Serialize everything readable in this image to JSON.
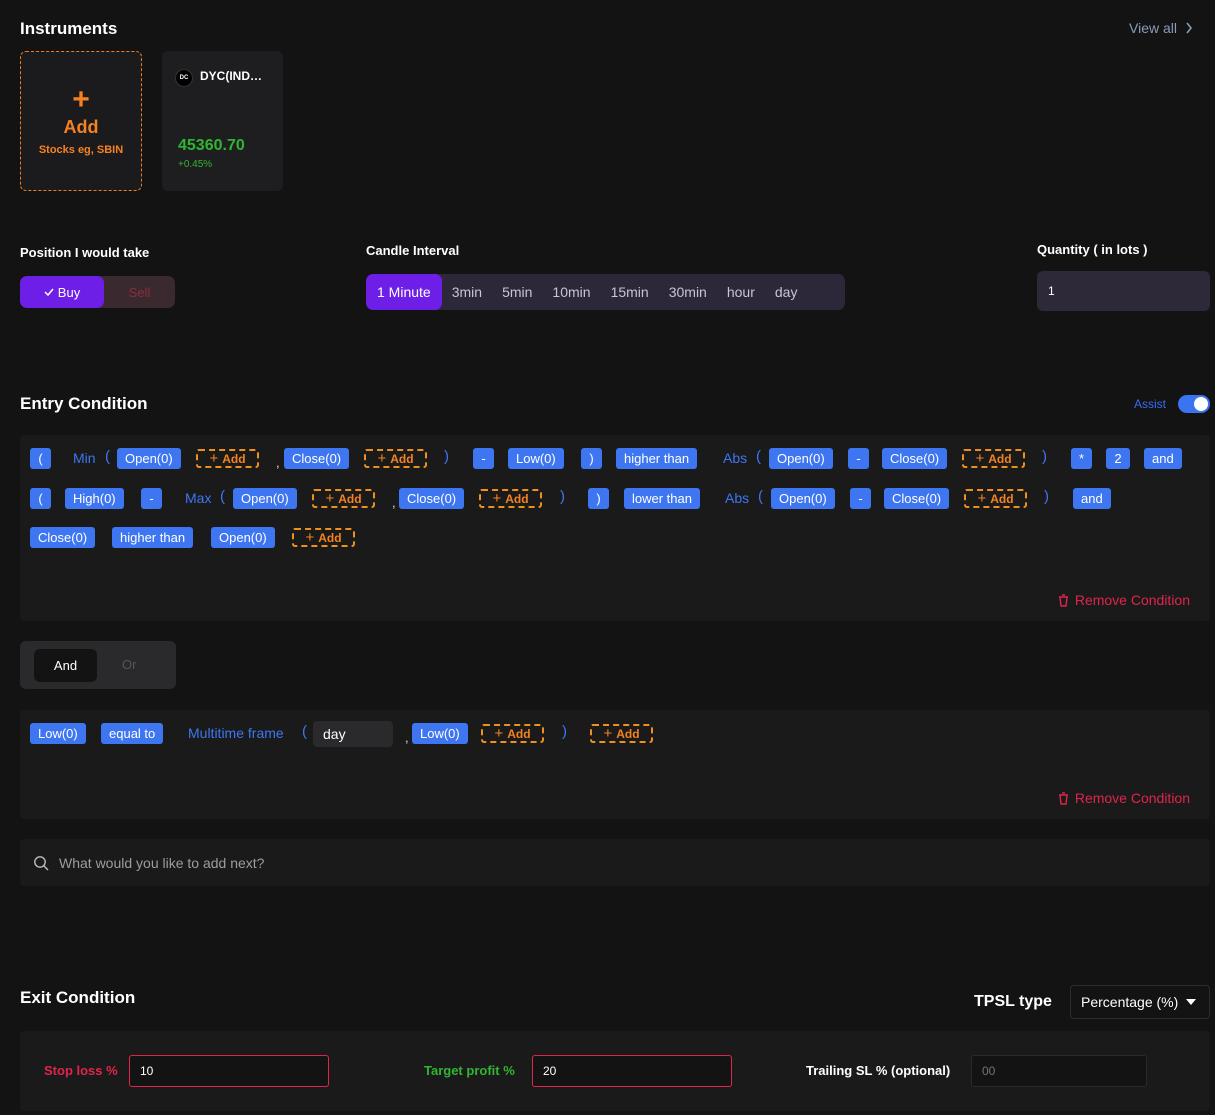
{
  "instruments": {
    "title": "Instruments",
    "view_all": "View all",
    "add_card": {
      "plus": "+",
      "label": "Add",
      "hint": "Stocks eg, SBIN"
    },
    "items": [
      {
        "logo": "DC",
        "name": "DYC(IND…",
        "price": "45360.70",
        "change": "+0.45%"
      }
    ]
  },
  "position": {
    "label": "Position I would take",
    "buy": "Buy",
    "sell": "Sell",
    "selected": "Buy"
  },
  "candle": {
    "label": "Candle Interval",
    "options": [
      "1 Minute",
      "3min",
      "5min",
      "10min",
      "15min",
      "30min",
      "hour",
      "day"
    ],
    "selected": "1 Minute"
  },
  "quantity": {
    "label": "Quantity ( in lots )",
    "value": "1"
  },
  "entry": {
    "title": "Entry Condition",
    "assist_label": "Assist",
    "assist_on": true,
    "remove_label": "Remove Condition",
    "add_label": "Add",
    "row1": {
      "paren_open": "(",
      "min": "Min",
      "p1": "(",
      "open0": "Open(0)",
      "comma": ",",
      "close0": "Close(0)",
      "p2": ")",
      "minus": "-",
      "low0": "Low(0)",
      "p3": ")",
      "higher_than": "higher than",
      "abs": "Abs",
      "p4": "(",
      "open0b": "Open(0)",
      "minus2": "-",
      "close0b": "Close(0)",
      "p5": ")",
      "times": "*",
      "two": "2",
      "and": "and"
    },
    "row2": {
      "paren_open": "(",
      "high0": "High(0)",
      "minus": "-",
      "max": "Max",
      "p1": "(",
      "open0": "Open(0)",
      "comma": ",",
      "close0": "Close(0)",
      "p2": ")",
      "p3": ")",
      "lower_than": "lower than",
      "abs": "Abs",
      "p4": "(",
      "open0b": "Open(0)",
      "minus2": "-",
      "close0b": "Close(0)",
      "p5": ")",
      "and": "and"
    },
    "row3": {
      "close0": "Close(0)",
      "higher_than": "higher than",
      "open0": "Open(0)"
    },
    "join": {
      "and": "And",
      "or": "Or",
      "selected": "And"
    },
    "cond2": {
      "low0": "Low(0)",
      "equal_to": "equal to",
      "mtf": "Multitime frame",
      "p1": "(",
      "timeframe": "day",
      "comma": ",",
      "low0b": "Low(0)",
      "p2": ")"
    },
    "search_placeholder": "What would you like to add next?"
  },
  "exit": {
    "title": "Exit Condition",
    "tpsl_label": "TPSL type",
    "tpsl_value": "Percentage (%)",
    "stop_loss_label": "Stop loss %",
    "stop_loss_value": "10",
    "target_label": "Target profit %",
    "target_value": "20",
    "trailing_label": "Trailing SL % (optional)",
    "trailing_placeholder": "00"
  },
  "colors": {
    "accent": "#6d1fe8",
    "chip": "#3e76f1",
    "add": "#f58220",
    "danger": "#e0254b",
    "success": "#31b531"
  }
}
